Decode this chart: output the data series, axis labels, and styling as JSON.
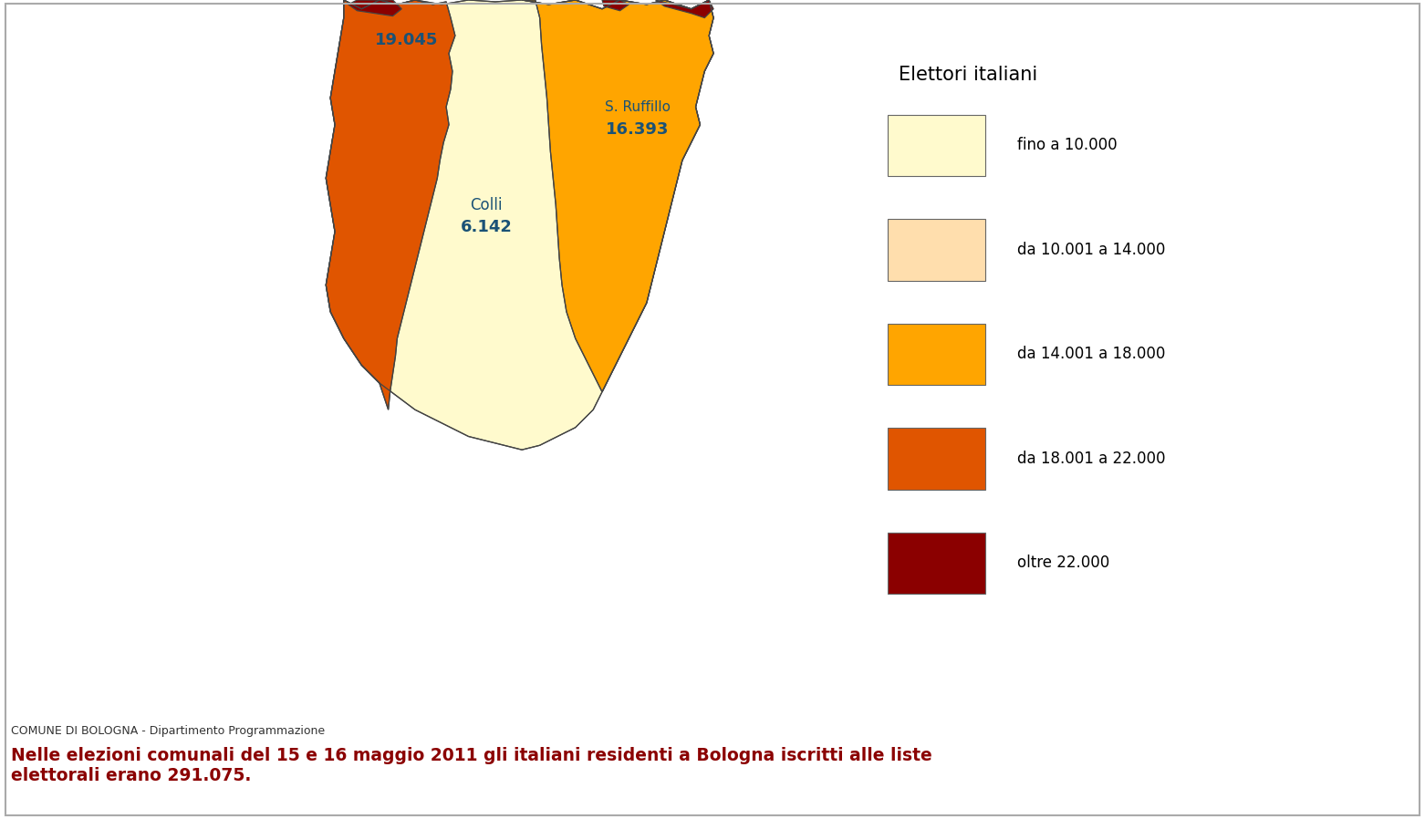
{
  "legend_title": "Elettori italiani",
  "legend_items": [
    {
      "label": "fino a 10.000",
      "color": "#FFFACD"
    },
    {
      "label": "da 10.001 a 14.000",
      "color": "#FFDEAD"
    },
    {
      "label": "da 14.001 a 18.000",
      "color": "#FFA500"
    },
    {
      "label": "da 18.001 a 22.000",
      "color": "#E05500"
    },
    {
      "label": "oltre 22.000",
      "color": "#8B0000"
    }
  ],
  "footer_source": "COMUNE DI BOLOGNA - Dipartimento Programmazione",
  "footer_main": "Nelle elezioni comunali del 15 e 16 maggio 2011 gli italiani residenti a Bologna iscritti alle liste\nelettorale erano 291.075.",
  "label_color": "#1a5276",
  "border_color": "#444444"
}
